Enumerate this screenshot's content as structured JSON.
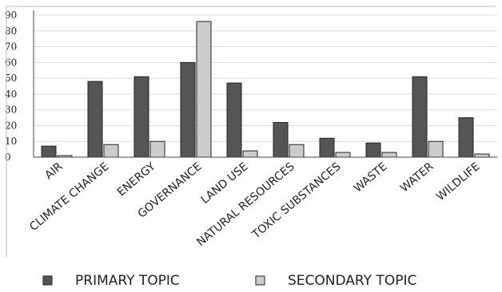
{
  "chart_data": {
    "type": "bar",
    "categories": [
      "AIR",
      "CLIMATE CHANGE",
      "ENERGY",
      "GOVERNANCE",
      "LAND USE",
      "NATURAL RESOURCES",
      "TOXIC SUBSTANCES",
      "WASTE",
      "WATER",
      "WILDLIFE"
    ],
    "series": [
      {
        "name": "PRIMARY TOPIC",
        "values": [
          7,
          48,
          51,
          60,
          47,
          22,
          12,
          9,
          51,
          25
        ],
        "color": "#555555"
      },
      {
        "name": "SECONDARY TOPIC",
        "values": [
          1,
          8,
          10,
          86,
          4,
          8,
          3,
          3,
          10,
          2
        ],
        "color": "#cccccc"
      }
    ],
    "yticks": [
      0,
      10,
      20,
      30,
      40,
      50,
      60,
      70,
      80,
      90
    ],
    "ylim": [
      0,
      90
    ],
    "grid": true,
    "legend_position": "bottom"
  }
}
